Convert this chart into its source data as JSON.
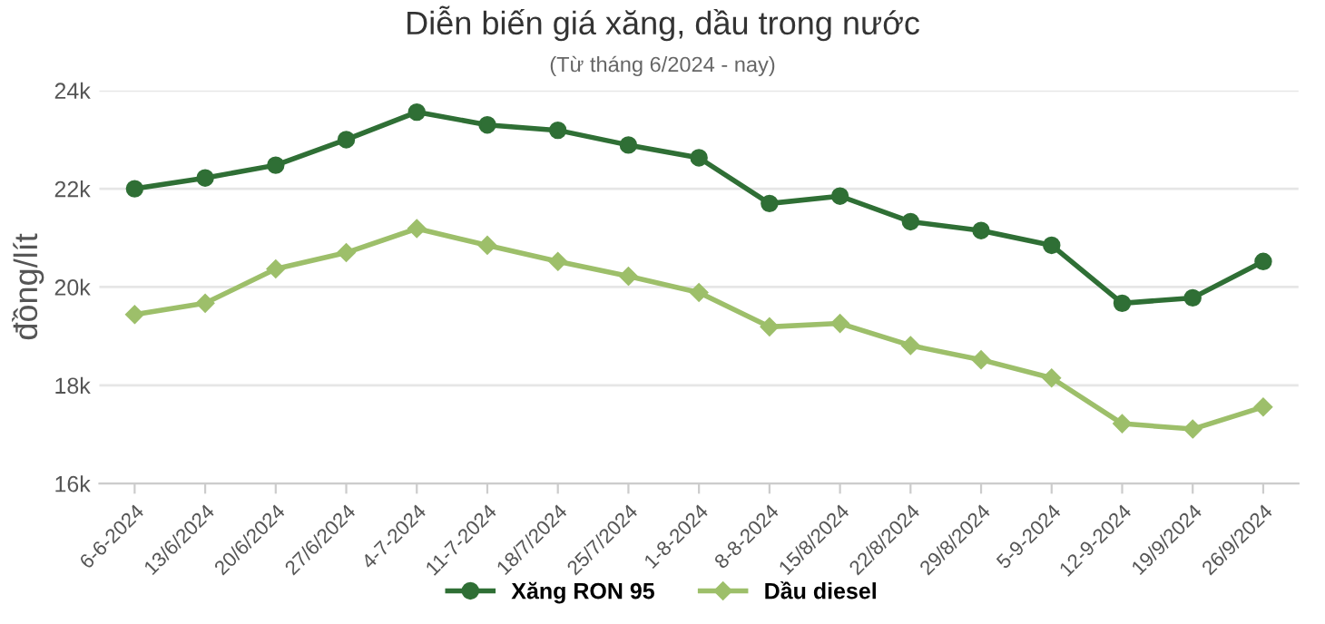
{
  "chart_data": {
    "type": "line",
    "title": "Diễn biến giá xăng, dầu trong nước",
    "subtitle": "(Từ tháng 6/2024 - nay)",
    "ylabel": "đồng/lít",
    "categories": [
      "6-6-2024",
      "13/6/2024",
      "20/6/2024",
      "27/6/2024",
      "4-7-2024",
      "11-7-2024",
      "18/7/2024",
      "25/7/2024",
      "1-8-2024",
      "8-8-2024",
      "15/8/2024",
      "22/8/2024",
      "29/8/2024",
      "5-9-2024",
      "12-9-2024",
      "19/9/2024",
      "26/9/2024"
    ],
    "series": [
      {
        "name": "Xăng RON 95",
        "color": "#2f6f35",
        "marker": "circle",
        "values": [
          22000,
          22220,
          22480,
          23000,
          23560,
          23300,
          23190,
          22890,
          22630,
          21700,
          21850,
          21330,
          21150,
          20850,
          19670,
          19780,
          20520
        ]
      },
      {
        "name": "Dầu diesel",
        "color": "#9dbf6a",
        "marker": "diamond",
        "values": [
          19440,
          19670,
          20370,
          20700,
          21190,
          20850,
          20520,
          20220,
          19890,
          19190,
          19260,
          18810,
          18520,
          18150,
          17220,
          17110,
          17560
        ]
      }
    ],
    "ylim": [
      16000,
      24000
    ],
    "yticks": [
      {
        "value": 16000,
        "label": "16k"
      },
      {
        "value": 18000,
        "label": "18k"
      },
      {
        "value": 20000,
        "label": "20k"
      },
      {
        "value": 22000,
        "label": "22k"
      },
      {
        "value": 24000,
        "label": "24k"
      }
    ],
    "grid": "y",
    "legend": "bottom",
    "line_style": "solid"
  }
}
